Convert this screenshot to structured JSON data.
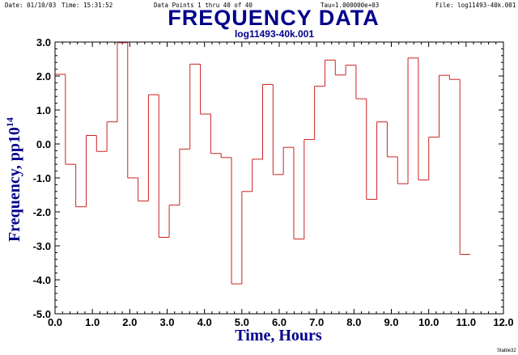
{
  "header": {
    "date": "Date: 01/10/03",
    "time": "Time: 15:31:52",
    "points": "Data Points 1 thru 40 of 40",
    "tau": "Tau=1.000000e+03",
    "file": "File: log11493-40k.001"
  },
  "footer": {
    "credit": "Stable32"
  },
  "chart_data": {
    "type": "line",
    "step": true,
    "title": "FREQUENCY DATA",
    "subtitle": "log11493-40k.001",
    "xlabel": "Time, Hours",
    "ylabel_main": "Frequency, pp10",
    "ylabel_exp": "14",
    "xlim": [
      0.0,
      12.0
    ],
    "ylim": [
      -5.0,
      3.0
    ],
    "x_ticks": [
      "0.0",
      "1.0",
      "2.0",
      "3.0",
      "4.0",
      "5.0",
      "6.0",
      "7.0",
      "8.0",
      "9.0",
      "10.0",
      "11.0",
      "12.0"
    ],
    "y_ticks": [
      "3.0",
      "2.0",
      "1.0",
      "0.0",
      "-1.0",
      "-2.0",
      "-3.0",
      "-4.0",
      "-5.0"
    ],
    "series_color": "#cc2222",
    "series": [
      {
        "x_start": 0.0,
        "x_step": 0.2778,
        "values": [
          2.05,
          -0.6,
          -1.85,
          0.25,
          -0.22,
          0.65,
          2.98,
          -1.0,
          -1.68,
          1.45,
          -2.75,
          -1.8,
          -0.15,
          2.35,
          0.88,
          -0.28,
          -0.4,
          -4.12,
          -1.4,
          -0.45,
          1.75,
          -0.9,
          -0.1,
          -2.8,
          0.13,
          1.7,
          2.47,
          2.03,
          2.32,
          1.33,
          -1.63,
          0.65,
          -0.38,
          -1.17,
          2.53,
          -1.06,
          0.2,
          2.02,
          1.9,
          -3.25
        ]
      }
    ]
  }
}
